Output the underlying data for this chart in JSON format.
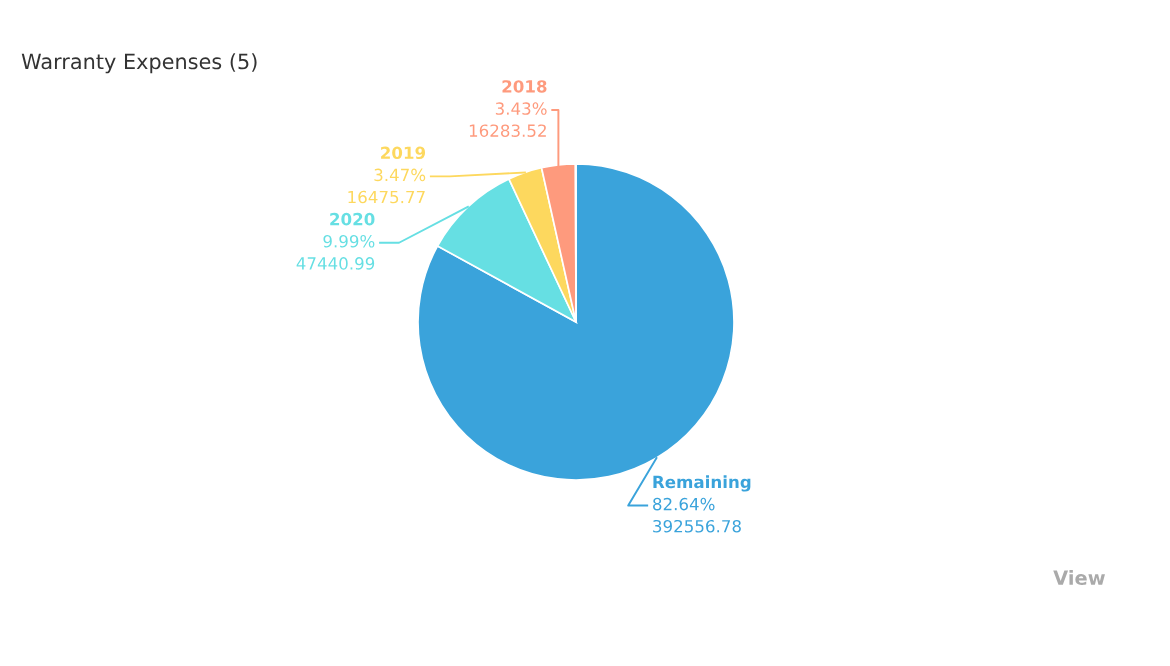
{
  "chart_data": {
    "type": "pie",
    "title": "Warranty Expenses (5)",
    "categories": [
      "Remaining",
      "2020",
      "2019",
      "2018",
      null
    ],
    "values": [
      392556.78,
      47440.99,
      16475.77,
      16283.52,
      263
    ],
    "colors": [
      "#3aa3db",
      "#66dfe3",
      "#fdd85e",
      "#fe9a7d",
      "#d5589b"
    ],
    "value_labels": [
      "82.64%\n392556.78",
      "9.99%\n47440.99",
      "3.47%\n16475.77",
      "3.43%\n16283.52",
      null
    ],
    "annotations": [
      "View"
    ]
  }
}
